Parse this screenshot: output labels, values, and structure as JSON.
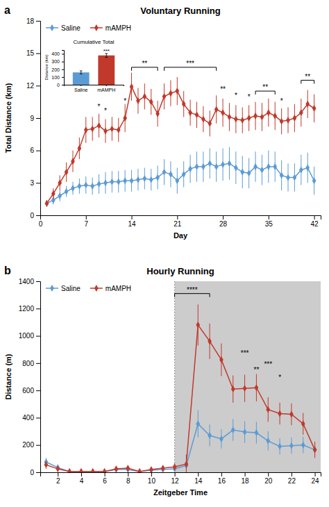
{
  "chart_data": [
    {
      "type": "line",
      "panel_label": "a",
      "title": "Voluntary Running",
      "x_label": "Day",
      "y_label": "Total Distance (km)",
      "xlim": [
        0,
        43
      ],
      "ylim": [
        0,
        18
      ],
      "xticks": [
        0,
        7,
        14,
        21,
        28,
        35,
        42
      ],
      "yticks": [
        0,
        3,
        6,
        9,
        12,
        15,
        18
      ],
      "grid": false,
      "legend": "upper left",
      "series": [
        {
          "name": "Saline",
          "color": "#5b9bd5",
          "marker": "diamond",
          "x": [
            1,
            2,
            3,
            4,
            5,
            6,
            7,
            8,
            9,
            10,
            11,
            12,
            13,
            14,
            15,
            16,
            17,
            18,
            19,
            20,
            21,
            22,
            23,
            24,
            25,
            26,
            27,
            28,
            29,
            30,
            31,
            32,
            33,
            34,
            35,
            36,
            37,
            38,
            39,
            40,
            41,
            42
          ],
          "values": [
            1.1,
            1.4,
            1.8,
            2.2,
            2.5,
            2.7,
            2.8,
            2.7,
            2.9,
            3.0,
            3.1,
            3.1,
            3.2,
            3.2,
            3.3,
            3.4,
            3.3,
            3.5,
            4.0,
            3.8,
            3.2,
            3.8,
            4.3,
            4.5,
            4.5,
            4.8,
            4.5,
            4.7,
            4.8,
            4.4,
            4.0,
            3.9,
            4.5,
            4.2,
            4.5,
            4.5,
            3.7,
            3.5,
            3.5,
            4.2,
            4.4,
            3.2
          ],
          "errors": [
            0.3,
            0.4,
            0.5,
            0.5,
            0.6,
            0.7,
            0.8,
            0.8,
            0.9,
            1.0,
            1.0,
            1.0,
            1.0,
            1.0,
            1.0,
            1.0,
            1.0,
            1.1,
            1.2,
            1.2,
            1.2,
            1.2,
            1.3,
            1.4,
            1.4,
            1.4,
            1.4,
            1.5,
            1.5,
            1.5,
            1.5,
            1.4,
            1.4,
            1.4,
            1.5,
            1.4,
            1.4,
            1.3,
            1.3,
            1.4,
            1.4,
            1.3
          ]
        },
        {
          "name": "mAMPH",
          "color": "#c0392b",
          "marker": "diamond",
          "x": [
            1,
            2,
            3,
            4,
            5,
            6,
            7,
            8,
            9,
            10,
            11,
            12,
            13,
            14,
            15,
            16,
            17,
            18,
            19,
            20,
            21,
            22,
            23,
            24,
            25,
            26,
            27,
            28,
            29,
            30,
            31,
            32,
            33,
            34,
            35,
            36,
            37,
            38,
            39,
            40,
            41,
            42
          ],
          "values": [
            1.1,
            2.0,
            3.0,
            4.0,
            5.0,
            6.2,
            7.9,
            8.0,
            8.3,
            7.8,
            8.0,
            7.9,
            9.0,
            11.9,
            10.6,
            11.0,
            10.5,
            9.4,
            11.0,
            11.3,
            11.5,
            10.3,
            9.5,
            9.3,
            8.9,
            8.5,
            9.8,
            9.5,
            9.1,
            8.9,
            8.8,
            9.0,
            9.2,
            9.1,
            9.5,
            9.2,
            8.7,
            8.8,
            9.0,
            9.5,
            10.3,
            9.9
          ],
          "errors": [
            0.3,
            0.5,
            0.7,
            0.9,
            1.0,
            1.0,
            1.2,
            1.1,
            1.1,
            1.1,
            1.1,
            1.1,
            1.3,
            1.3,
            1.2,
            1.2,
            1.2,
            1.2,
            1.2,
            1.2,
            1.3,
            1.2,
            1.2,
            1.2,
            1.2,
            1.2,
            1.3,
            1.3,
            1.3,
            1.3,
            1.2,
            1.2,
            1.3,
            1.3,
            1.3,
            1.3,
            1.2,
            1.2,
            1.3,
            1.3,
            1.3,
            1.3
          ]
        }
      ],
      "annotations": [
        {
          "text": "**",
          "x": [
            14,
            18
          ],
          "y": 13.7
        },
        {
          "text": "***",
          "x": [
            19,
            27
          ],
          "y": 13.7
        },
        {
          "text": "**",
          "x": [
            33,
            36
          ],
          "y": 11.5
        },
        {
          "text": "**",
          "x": [
            40,
            42
          ],
          "y": 12.5
        },
        {
          "text": "*",
          "x": 9,
          "y": 9.8
        },
        {
          "text": "*",
          "x": 10,
          "y": 9.4
        },
        {
          "text": "*",
          "x": 13,
          "y": 10.3
        },
        {
          "text": "**",
          "x": 28,
          "y": 11.4
        },
        {
          "text": "*",
          "x": 30,
          "y": 10.8
        },
        {
          "text": "*",
          "x": 32,
          "y": 10.7
        },
        {
          "text": "*",
          "x": 37,
          "y": 10.3
        }
      ]
    },
    {
      "type": "bar",
      "title": "Cumulative Total",
      "y_label": "Distance (km)",
      "categories": [
        "Saline",
        "mAMPH"
      ],
      "values": [
        160,
        380
      ],
      "errors": [
        20,
        25
      ],
      "colors": [
        "#5b9bd5",
        "#c0392b"
      ],
      "ylim": [
        0,
        450
      ],
      "yticks": [
        0,
        100,
        200,
        300,
        400
      ],
      "annotations": [
        {
          "text": "***",
          "category": "mAMPH",
          "y": 417
        }
      ]
    },
    {
      "type": "line",
      "panel_label": "b",
      "title": "Hourly Running",
      "x_label": "Zeitgeber Time",
      "y_label": "Distance (m)",
      "xlim": [
        0.5,
        24.5
      ],
      "ylim": [
        0,
        1400
      ],
      "xticks": [
        2,
        4,
        6,
        8,
        10,
        12,
        14,
        16,
        18,
        20,
        22,
        24
      ],
      "yticks": [
        0,
        200,
        400,
        600,
        800,
        1000,
        1200,
        1400
      ],
      "grid": false,
      "legend": "upper left",
      "shaded_region": {
        "from": 12,
        "to": 24.5,
        "color": "#cccccc"
      },
      "reference_line": {
        "x": 12
      },
      "series": [
        {
          "name": "Saline",
          "color": "#5b9bd5",
          "marker": "diamond",
          "x": [
            1,
            2,
            3,
            4,
            5,
            6,
            7,
            8,
            9,
            10,
            11,
            12,
            13,
            14,
            15,
            16,
            17,
            18,
            19,
            20,
            21,
            22,
            23,
            24
          ],
          "values": [
            75,
            35,
            5,
            5,
            5,
            5,
            20,
            20,
            5,
            15,
            20,
            25,
            50,
            355,
            270,
            245,
            310,
            295,
            290,
            230,
            190,
            195,
            200,
            165
          ],
          "errors": [
            30,
            20,
            5,
            5,
            5,
            5,
            15,
            15,
            5,
            10,
            15,
            15,
            50,
            100,
            80,
            70,
            80,
            80,
            80,
            70,
            60,
            60,
            60,
            50
          ]
        },
        {
          "name": "mAMPH",
          "color": "#c0392b",
          "marker": "diamond",
          "x": [
            1,
            2,
            3,
            4,
            5,
            6,
            7,
            8,
            9,
            10,
            11,
            12,
            13,
            14,
            15,
            16,
            17,
            18,
            19,
            20,
            21,
            22,
            23,
            24
          ],
          "values": [
            55,
            25,
            5,
            5,
            5,
            5,
            25,
            30,
            5,
            20,
            30,
            40,
            60,
            1080,
            960,
            825,
            610,
            615,
            620,
            460,
            430,
            425,
            355,
            165
          ],
          "errors": [
            30,
            20,
            5,
            5,
            5,
            5,
            20,
            20,
            5,
            15,
            20,
            25,
            70,
            150,
            130,
            120,
            100,
            100,
            100,
            90,
            80,
            80,
            80,
            60
          ]
        }
      ],
      "annotations": [
        {
          "text": "****",
          "x": [
            12,
            15
          ],
          "y": 1310
        },
        {
          "text": "***",
          "x": 18,
          "y": 850
        },
        {
          "text": "**",
          "x": 19,
          "y": 730
        },
        {
          "text": "***",
          "x": 20,
          "y": 770
        },
        {
          "text": "*",
          "x": 21,
          "y": 670
        }
      ]
    }
  ]
}
